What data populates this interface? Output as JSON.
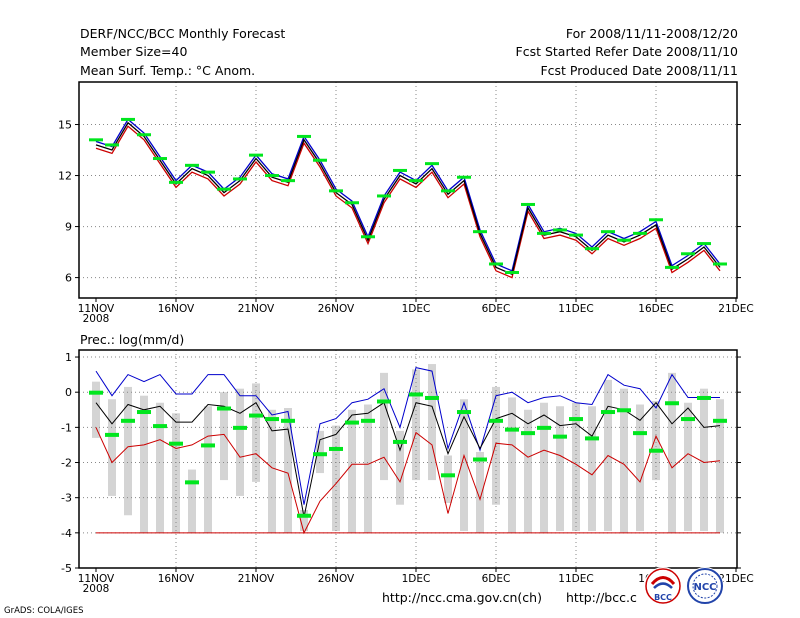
{
  "header": {
    "title": "DERF/NCC/BCC Monthly Forecast",
    "member_size": "Member Size=40",
    "variable": "Mean Surf. Temp.: °C Anom.",
    "period": "For 2008/11/11-2008/12/20",
    "start_ref": "Fcst Started Refer Date 2008/11/10",
    "produced": "Fcst Produced Date 2008/11/11"
  },
  "footer": {
    "grads": "GrADS: COLA/IGES",
    "url1": "http://ncc.cma.gov.cn(ch)",
    "url2": "http://bcc.c",
    "logo_left": "BCC",
    "logo_right": "NCC"
  },
  "chart_data": [
    {
      "type": "line",
      "title": "Mean Surf. Temp.: °C Anom.",
      "x_tick_labels": [
        "11NOV",
        "16NOV",
        "21NOV",
        "26NOV",
        "1DEC",
        "6DEC",
        "11DEC",
        "16DEC",
        "21DEC"
      ],
      "x_year_label": "2008",
      "ylim": [
        4.8,
        17.5
      ],
      "yticks": [
        6,
        9,
        12,
        15
      ],
      "colors": {
        "upper": "#0000cc",
        "mean": "#000000",
        "lower": "#cc0000",
        "marker": "#00e61e"
      },
      "series": [
        {
          "name": "mean",
          "values": [
            13.8,
            13.5,
            15.1,
            14.3,
            12.9,
            11.5,
            12.4,
            12.0,
            11.0,
            11.7,
            13.0,
            11.9,
            11.6,
            14.1,
            12.7,
            11.0,
            10.3,
            8.2,
            10.6,
            12.0,
            11.5,
            12.4,
            10.9,
            11.7,
            8.6,
            6.6,
            6.2,
            10.1,
            8.5,
            8.7,
            8.4,
            7.6,
            8.5,
            8.1,
            8.5,
            9.1,
            6.5,
            7.1,
            7.8,
            6.6
          ]
        },
        {
          "name": "upper",
          "values": [
            14.0,
            13.7,
            15.3,
            14.5,
            13.1,
            11.7,
            12.6,
            12.2,
            11.2,
            11.9,
            13.2,
            12.1,
            11.8,
            14.3,
            12.9,
            11.2,
            10.5,
            8.4,
            10.8,
            12.2,
            11.7,
            12.6,
            11.1,
            11.9,
            8.8,
            6.8,
            6.4,
            10.3,
            8.7,
            8.9,
            8.6,
            7.8,
            8.7,
            8.3,
            8.7,
            9.3,
            6.7,
            7.3,
            8.0,
            6.8
          ]
        },
        {
          "name": "lower",
          "values": [
            13.6,
            13.3,
            14.9,
            14.1,
            12.7,
            11.3,
            12.2,
            11.8,
            10.8,
            11.5,
            12.8,
            11.7,
            11.4,
            13.9,
            12.5,
            10.8,
            10.1,
            8.0,
            10.4,
            11.8,
            11.3,
            12.2,
            10.7,
            11.5,
            8.4,
            6.4,
            6.0,
            9.9,
            8.3,
            8.5,
            8.2,
            7.4,
            8.3,
            7.9,
            8.3,
            8.9,
            6.3,
            6.9,
            7.6,
            6.4
          ]
        },
        {
          "name": "markers",
          "values": [
            14.1,
            13.8,
            15.3,
            14.4,
            13.0,
            11.6,
            12.6,
            12.2,
            11.2,
            11.8,
            13.2,
            12.0,
            11.7,
            14.3,
            12.9,
            11.1,
            10.4,
            8.4,
            10.8,
            12.3,
            11.7,
            12.7,
            11.1,
            11.9,
            8.7,
            6.8,
            6.3,
            10.3,
            8.6,
            8.8,
            8.5,
            7.7,
            8.7,
            8.2,
            8.6,
            9.4,
            6.6,
            7.4,
            8.0,
            6.8
          ]
        }
      ]
    },
    {
      "type": "line",
      "title": "Prec.: log(mm/d)",
      "x_tick_labels": [
        "11NOV",
        "16NOV",
        "21NOV",
        "26NOV",
        "1DEC",
        "6DEC",
        "11DEC",
        "16DEC",
        "21DEC"
      ],
      "x_year_label": "2008",
      "ylim": [
        -5,
        1.2
      ],
      "yticks": [
        -5,
        -4,
        -3,
        -2,
        -1,
        0,
        1
      ],
      "colors": {
        "upper": "#0000cc",
        "mean": "#000000",
        "lower": "#cc0000",
        "constant": "#cc0000",
        "marker": "#00e61e",
        "bar": "#d4d4d4"
      },
      "series": [
        {
          "name": "mean",
          "values": [
            -0.3,
            -0.9,
            -0.35,
            -0.5,
            -0.4,
            -0.85,
            -0.85,
            -0.35,
            -0.4,
            -0.6,
            -0.3,
            -1.1,
            -1.05,
            -3.55,
            -1.35,
            -1.2,
            -0.65,
            -0.6,
            -0.3,
            -1.65,
            -0.3,
            -0.4,
            -1.75,
            -0.7,
            -1.6,
            -0.75,
            -0.6,
            -0.9,
            -0.65,
            -0.95,
            -0.9,
            -1.25,
            -0.4,
            -0.5,
            -0.8,
            -0.3,
            -0.9,
            -0.45,
            -1.0,
            -0.95
          ]
        },
        {
          "name": "upper",
          "values": [
            0.6,
            -0.1,
            0.5,
            0.3,
            0.5,
            -0.05,
            -0.05,
            0.5,
            0.5,
            -0.1,
            -0.1,
            -0.65,
            -0.55,
            -3.2,
            -0.9,
            -0.75,
            -0.3,
            -0.2,
            0.1,
            -1.0,
            0.7,
            0.6,
            -1.6,
            -0.3,
            -1.65,
            -0.1,
            0.0,
            -0.3,
            -0.15,
            -0.1,
            -0.3,
            -0.35,
            0.5,
            0.2,
            0.1,
            -0.45,
            0.5,
            -0.15,
            -0.15,
            -0.15
          ]
        },
        {
          "name": "lower",
          "values": [
            -1.0,
            -2.0,
            -1.55,
            -1.5,
            -1.35,
            -1.6,
            -1.5,
            -1.25,
            -1.2,
            -1.85,
            -1.75,
            -2.15,
            -2.3,
            -4.0,
            -3.1,
            -2.6,
            -2.05,
            -2.05,
            -1.85,
            -2.55,
            -1.15,
            -1.5,
            -3.45,
            -1.8,
            -3.05,
            -1.45,
            -1.5,
            -1.85,
            -1.65,
            -1.8,
            -2.05,
            -2.35,
            -1.8,
            -2.05,
            -2.55,
            -1.25,
            -2.15,
            -1.75,
            -2.0,
            -1.95
          ]
        },
        {
          "name": "constant",
          "values": [
            -4.0,
            -4.0
          ]
        },
        {
          "name": "markers",
          "values": [
            0.0,
            -1.2,
            -0.8,
            -0.55,
            -0.95,
            -1.45,
            -2.55,
            -1.5,
            -0.45,
            -1.0,
            -0.65,
            -0.75,
            -0.8,
            -3.5,
            -1.75,
            -1.6,
            -0.85,
            -0.8,
            -0.25,
            -1.4,
            -0.05,
            -0.15,
            -2.35,
            -0.55,
            -1.9,
            -0.8,
            -1.05,
            -1.15,
            -1.0,
            -1.25,
            -0.75,
            -1.3,
            -0.55,
            -0.5,
            -1.15,
            -1.65,
            -0.3,
            -0.75,
            -0.15,
            -0.8
          ]
        },
        {
          "name": "bar_top",
          "values": [
            0.3,
            -0.2,
            0.15,
            -0.1,
            -0.3,
            -0.6,
            -2.2,
            -0.4,
            0.0,
            0.1,
            0.25,
            -0.5,
            -0.45,
            -3.35,
            -1.1,
            -0.95,
            -0.5,
            -0.35,
            0.55,
            -1.1,
            0.65,
            0.8,
            -1.8,
            -0.2,
            -1.7,
            0.15,
            -0.15,
            -0.5,
            -0.3,
            -0.4,
            -0.3,
            -0.4,
            0.35,
            0.1,
            -0.35,
            -0.25,
            0.55,
            -0.3,
            0.1,
            -0.2
          ]
        },
        {
          "name": "bar_bottom",
          "values": [
            -1.3,
            -2.95,
            -3.5,
            -4.0,
            -4.0,
            -4.0,
            -4.0,
            -4.0,
            -2.5,
            -2.95,
            -2.55,
            -4.0,
            -4.0,
            -3.95,
            -2.3,
            -3.95,
            -4.0,
            -4.0,
            -2.5,
            -3.2,
            -2.5,
            -2.5,
            -3.15,
            -3.95,
            -4.0,
            -3.2,
            -4.0,
            -4.0,
            -4.0,
            -3.95,
            -3.95,
            -3.95,
            -3.95,
            -4.0,
            -3.95,
            -2.5,
            -4.0,
            -3.95,
            -3.95,
            -4.0
          ]
        }
      ]
    }
  ]
}
